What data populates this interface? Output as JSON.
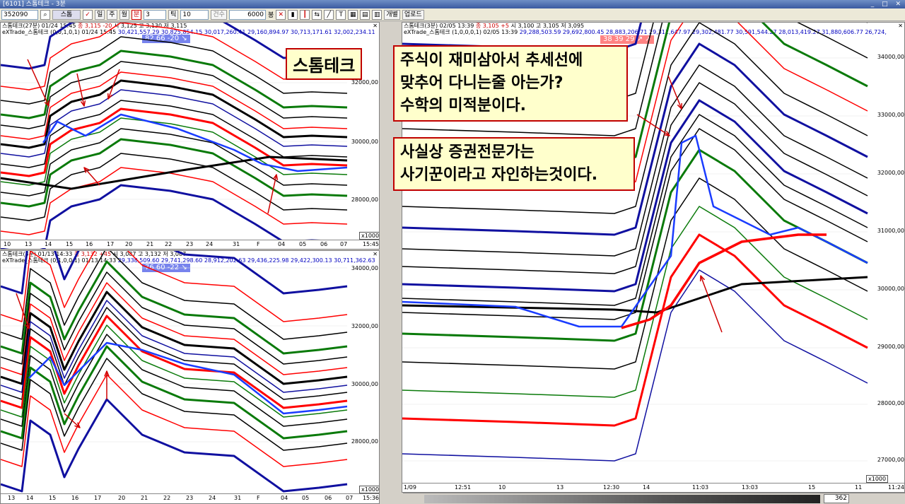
{
  "window": {
    "title": "[6101] 스톰테크 - 3분"
  },
  "toolbar": {
    "code": "352090",
    "period_buttons": [
      "일",
      "주",
      "월",
      "분"
    ],
    "period_value": "3",
    "tick_label": "틱",
    "tick_value": "10",
    "count_label": "건수",
    "count_value": "6000",
    "count_unit": "봉",
    "btn_individual": "개별",
    "btn_upload": "업로드"
  },
  "pane_top_left": {
    "head": "스톰테크(27분) 01/24 15:45",
    "head_red": "종 3,115 -20",
    "head_rest": "시 3,125 고 3,130 저 3,115",
    "line2_a": "eXTrade_스톰테크 (0,0,1,0,1) 01/24 15:45",
    "line2_b": "30,421,557.29 30,825,854.15 30,017,260.41 29,160,894.97 30,713,171.61 32,002,234.11",
    "badge": "82 66 -20 ↘",
    "yticks": [
      "32000,00",
      "30000,00",
      "28000,00"
    ],
    "xticks": [
      "10",
      "13",
      "14",
      "15",
      "16",
      "17",
      "20",
      "21",
      "22",
      "23",
      "24",
      "31",
      "F",
      "04",
      "05",
      "06",
      "07"
    ],
    "time": "15:45",
    "zoom": "x1000"
  },
  "pane_bottom_left": {
    "head": "스톰테크(3분) 01/13 14:33",
    "head_red": "종 3,132 +45",
    "head_rest": "시 3,087 고 3,132 저 3,087",
    "line2_a": "eXTrade_스톰테크 (0,1,0,0,1) 01/13 14:33",
    "line2_b": "29,338,509.60 29,741,298.60 28,912,202.63 29,436,225.98 29,422,300.13 30,711,362.63",
    "badge": "76 60 -22 ↘",
    "yticks": [
      "34000,00",
      "32000,00",
      "30000,00",
      "28000,00"
    ],
    "xticks": [
      "13",
      "14",
      "15",
      "16",
      "17",
      "20",
      "21",
      "22",
      "23",
      "24",
      "31",
      "F",
      "04",
      "05",
      "06",
      "07"
    ],
    "time": "15:36",
    "zoom": "x1000"
  },
  "pane_right": {
    "head": "스톰테크(3분) 02/05 13:39",
    "head_red": "종 3,105 +5",
    "head_rest": "시 3,100 고 3,105 저 3,095",
    "line2_a": "eXTrade_스톰테크 (1,0,0,0,1) 02/05 13:39",
    "line2_b": "29,288,503.59 29,692,800.45 28,883,206.71 29,311,647.97 29,302,481.77 30,591,544.27 28,013,419.27 31,880,606.77 26,724,",
    "badge": "38 39 29 ↗ ↗",
    "yticks": [
      "34000,00",
      "33000,00",
      "32000,00",
      "31000,00",
      "30000,00",
      "29000,00",
      "28000,00",
      "27000,00"
    ],
    "xticks": [
      "1/09",
      "12:51",
      "10",
      "13",
      "12:30",
      "14",
      "11:03",
      "13:03",
      "15",
      "11"
    ],
    "time": "11:24",
    "zoom": "x1000",
    "scroll_value": "362"
  },
  "annotations": {
    "stamp": "스톰테크",
    "callout1": [
      "주식이 재미삼아서 추세선에",
      "맞추어 다니는줄 아는가?",
      "수학의 미적분이다."
    ],
    "callout2": [
      "사실상 증권전문가는",
      "사기꾼이라고 자인하는것이다."
    ]
  },
  "colors": {
    "red": "#ff0000",
    "blue": "#1010a0",
    "green": "#0a7a0a",
    "black": "#000000",
    "callout_bg": "#ffffcc",
    "badge_bg": "#4a5ae8",
    "badge_red": "#ff5a5a"
  }
}
